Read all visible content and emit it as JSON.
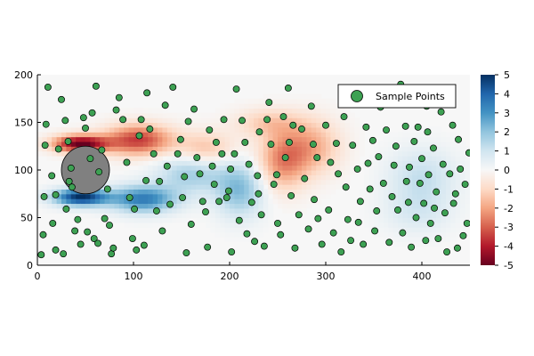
{
  "chart_data": {
    "type": "heatmap",
    "title": "",
    "xlabel": "",
    "ylabel": "",
    "xlim": [
      0,
      450
    ],
    "ylim": [
      0,
      200
    ],
    "x_ticks": [
      "0",
      "100",
      "200",
      "300",
      "400"
    ],
    "x_tick_values": [
      0,
      100,
      200,
      300,
      400
    ],
    "y_ticks": [
      "0",
      "50",
      "100",
      "150",
      "200"
    ],
    "y_tick_values": [
      0,
      50,
      100,
      150,
      200
    ],
    "colorbar": {
      "colormap": "RdBu",
      "range": [
        -5,
        5
      ],
      "ticks": [
        "-5",
        "-4",
        "-3",
        "-2",
        "-1",
        "0",
        "1",
        "2",
        "3",
        "4",
        "5"
      ],
      "tick_values": [
        -5,
        -4,
        -3,
        -2,
        -1,
        0,
        1,
        2,
        3,
        4,
        5
      ]
    },
    "vorticity_features": [
      {
        "x": 45,
        "y": 128,
        "sign": -1,
        "peak": -5,
        "spread_x": 28,
        "spread_y": 9
      },
      {
        "x": 45,
        "y": 72,
        "sign": 1,
        "peak": 5,
        "spread_x": 28,
        "spread_y": 9
      },
      {
        "x": 105,
        "y": 132,
        "sign": -1,
        "peak": -3.5,
        "spread_x": 35,
        "spread_y": 16
      },
      {
        "x": 110,
        "y": 70,
        "sign": 1,
        "peak": 3.5,
        "spread_x": 35,
        "spread_y": 14
      },
      {
        "x": 160,
        "y": 97,
        "sign": 1,
        "peak": 1.8,
        "spread_x": 35,
        "spread_y": 20
      },
      {
        "x": 175,
        "y": 122,
        "sign": -1,
        "peak": -1.5,
        "spread_x": 30,
        "spread_y": 18
      },
      {
        "x": 210,
        "y": 80,
        "sign": 1,
        "peak": 2.2,
        "spread_x": 25,
        "spread_y": 28
      },
      {
        "x": 255,
        "y": 110,
        "sign": -1,
        "peak": -2.3,
        "spread_x": 25,
        "spread_y": 30
      },
      {
        "x": 285,
        "y": 125,
        "sign": -1,
        "peak": -1.8,
        "spread_x": 30,
        "spread_y": 28
      },
      {
        "x": 240,
        "y": 150,
        "sign": -1,
        "peak": -1.2,
        "spread_x": 35,
        "spread_y": 15
      },
      {
        "x": 400,
        "y": 92,
        "sign": 1,
        "peak": 1.2,
        "spread_x": 35,
        "spread_y": 30
      },
      {
        "x": 395,
        "y": 55,
        "sign": 1,
        "peak": 0.7,
        "spread_x": 35,
        "spread_y": 22
      }
    ],
    "obstacle": {
      "shape": "circle",
      "cx": 50,
      "cy": 100,
      "r": 25,
      "color": "#808080"
    },
    "series": [
      {
        "name": "Sample Points",
        "type": "scatter",
        "color": "#3da153",
        "points": [
          [
            4,
            11
          ],
          [
            6,
            32
          ],
          [
            7,
            72
          ],
          [
            8,
            126
          ],
          [
            9,
            148
          ],
          [
            11,
            187
          ],
          [
            15,
            94
          ],
          [
            16,
            44
          ],
          [
            19,
            16
          ],
          [
            19,
            74
          ],
          [
            22,
            122
          ],
          [
            25,
            174
          ],
          [
            27,
            12
          ],
          [
            29,
            152
          ],
          [
            30,
            59
          ],
          [
            32,
            130
          ],
          [
            33,
            88
          ],
          [
            35,
            102
          ],
          [
            36,
            82
          ],
          [
            39,
            36
          ],
          [
            42,
            48
          ],
          [
            45,
            22
          ],
          [
            48,
            155
          ],
          [
            50,
            144
          ],
          [
            52,
            35
          ],
          [
            55,
            112
          ],
          [
            57,
            160
          ],
          [
            59,
            28
          ],
          [
            61,
            188
          ],
          [
            63,
            23
          ],
          [
            64,
            98
          ],
          [
            67,
            121
          ],
          [
            70,
            49
          ],
          [
            73,
            80
          ],
          [
            75,
            42
          ],
          [
            77,
            12
          ],
          [
            79,
            18
          ],
          [
            82,
            163
          ],
          [
            85,
            176
          ],
          [
            89,
            153
          ],
          [
            93,
            108
          ],
          [
            96,
            71
          ],
          [
            99,
            28
          ],
          [
            101,
            59
          ],
          [
            103,
            16
          ],
          [
            106,
            136
          ],
          [
            108,
            153
          ],
          [
            111,
            21
          ],
          [
            113,
            89
          ],
          [
            114,
            181
          ],
          [
            117,
            143
          ],
          [
            121,
            117
          ],
          [
            124,
            57
          ],
          [
            127,
            88
          ],
          [
            130,
            36
          ],
          [
            133,
            168
          ],
          [
            135,
            104
          ],
          [
            138,
            64
          ],
          [
            141,
            187
          ],
          [
            146,
            117
          ],
          [
            149,
            132
          ],
          [
            151,
            71
          ],
          [
            153,
            93
          ],
          [
            155,
            13
          ],
          [
            157,
            151
          ],
          [
            160,
            43
          ],
          [
            163,
            164
          ],
          [
            166,
            113
          ],
          [
            169,
            96
          ],
          [
            172,
            67
          ],
          [
            175,
            56
          ],
          [
            177,
            19
          ],
          [
            179,
            142
          ],
          [
            182,
            104
          ],
          [
            184,
            85
          ],
          [
            186,
            129
          ],
          [
            189,
            67
          ],
          [
            192,
            117
          ],
          [
            194,
            153
          ],
          [
            197,
            71
          ],
          [
            199,
            78
          ],
          [
            201,
            101
          ],
          [
            202,
            14
          ],
          [
            205,
            117
          ],
          [
            207,
            185
          ],
          [
            210,
            47
          ],
          [
            213,
            152
          ],
          [
            216,
            129
          ],
          [
            218,
            33
          ],
          [
            220,
            106
          ],
          [
            223,
            66
          ],
          [
            226,
            25
          ],
          [
            229,
            94
          ],
          [
            230,
            75
          ],
          [
            231,
            140
          ],
          [
            233,
            53
          ],
          [
            236,
            20
          ],
          [
            239,
            153
          ],
          [
            241,
            171
          ],
          [
            243,
            127
          ],
          [
            246,
            85
          ],
          [
            249,
            95
          ],
          [
            250,
            44
          ],
          [
            253,
            32
          ],
          [
            256,
            156
          ],
          [
            258,
            113
          ],
          [
            261,
            186
          ],
          [
            262,
            129
          ],
          [
            264,
            73
          ],
          [
            266,
            147
          ],
          [
            268,
            18
          ],
          [
            272,
            53
          ],
          [
            275,
            143
          ],
          [
            278,
            91
          ],
          [
            282,
            38
          ],
          [
            285,
            167
          ],
          [
            287,
            127
          ],
          [
            288,
            69
          ],
          [
            291,
            113
          ],
          [
            292,
            49
          ],
          [
            296,
            22
          ],
          [
            300,
            147
          ],
          [
            303,
            58
          ],
          [
            305,
            108
          ],
          [
            308,
            34
          ],
          [
            311,
            128
          ],
          [
            313,
            96
          ],
          [
            316,
            14
          ],
          [
            319,
            156
          ],
          [
            321,
            82
          ],
          [
            323,
            48
          ],
          [
            326,
            26
          ],
          [
            328,
            126
          ],
          [
            331,
            183
          ],
          [
            333,
            101
          ],
          [
            334,
            45
          ],
          [
            336,
            67
          ],
          [
            339,
            22
          ],
          [
            342,
            145
          ],
          [
            344,
            107
          ],
          [
            346,
            80
          ],
          [
            349,
            131
          ],
          [
            351,
            36
          ],
          [
            353,
            57
          ],
          [
            355,
            114
          ],
          [
            357,
            166
          ],
          [
            360,
            86
          ],
          [
            363,
            142
          ],
          [
            366,
            24
          ],
          [
            369,
            72
          ],
          [
            371,
            105
          ],
          [
            373,
            125
          ],
          [
            375,
            58
          ],
          [
            378,
            190
          ],
          [
            380,
            34
          ],
          [
            383,
            146
          ],
          [
            384,
            88
          ],
          [
            386,
            66
          ],
          [
            387,
            103
          ],
          [
            389,
            19
          ],
          [
            392,
            130
          ],
          [
            394,
            50
          ],
          [
            396,
            145
          ],
          [
            398,
            86
          ],
          [
            400,
            112
          ],
          [
            402,
            65
          ],
          [
            404,
            26
          ],
          [
            405,
            167
          ],
          [
            406,
            140
          ],
          [
            407,
            95
          ],
          [
            409,
            44
          ],
          [
            412,
            123
          ],
          [
            413,
            60
          ],
          [
            415,
            77
          ],
          [
            417,
            28
          ],
          [
            420,
            161
          ],
          [
            422,
            106
          ],
          [
            424,
            55
          ],
          [
            426,
            14
          ],
          [
            429,
            96
          ],
          [
            432,
            147
          ],
          [
            433,
            65
          ],
          [
            435,
            75
          ],
          [
            437,
            18
          ],
          [
            438,
            132
          ],
          [
            440,
            101
          ],
          [
            443,
            31
          ],
          [
            445,
            85
          ],
          [
            447,
            44
          ],
          [
            449,
            118
          ]
        ]
      }
    ],
    "legend": {
      "position": "top-right",
      "entries": [
        "Sample Points"
      ]
    },
    "grid": false
  }
}
